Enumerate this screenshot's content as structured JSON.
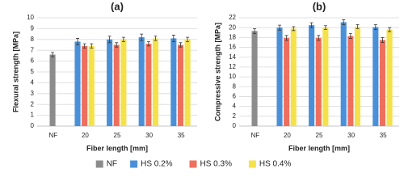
{
  "chart_data": [
    {
      "type": "bar",
      "title": "(a)",
      "ylabel": "Flexural strength [MPa]",
      "xlabel": "Fiber length [mm]",
      "categories": [
        "NF",
        "20",
        "25",
        "30",
        "35"
      ],
      "ylim": [
        0,
        10
      ],
      "yticks": [
        0,
        1,
        2,
        3,
        4,
        5,
        6,
        7,
        8,
        9,
        10
      ],
      "grid": true,
      "series": [
        {
          "values": [
            6.6,
            null,
            null,
            null,
            null
          ],
          "errors": [
            0.2,
            null,
            null,
            null,
            null
          ]
        },
        {
          "values": [
            null,
            7.8,
            8.0,
            8.2,
            8.1
          ],
          "errors": [
            null,
            0.3,
            0.3,
            0.3,
            0.3
          ]
        },
        {
          "values": [
            null,
            7.4,
            7.5,
            7.6,
            7.5
          ],
          "errors": [
            null,
            0.2,
            0.2,
            0.2,
            0.2
          ]
        },
        {
          "values": [
            null,
            7.4,
            8.0,
            8.1,
            8.0
          ],
          "errors": [
            null,
            0.2,
            0.2,
            0.2,
            0.2
          ]
        }
      ]
    },
    {
      "type": "bar",
      "title": "(b)",
      "ylabel": "Compressive strength [MPa]",
      "xlabel": "Fiber length [mm]",
      "categories": [
        "NF",
        "20",
        "25",
        "30",
        "35"
      ],
      "ylim": [
        0,
        22
      ],
      "yticks": [
        0,
        2,
        4,
        6,
        8,
        10,
        12,
        14,
        16,
        18,
        20,
        22
      ],
      "grid": true,
      "series": [
        {
          "values": [
            19.3,
            null,
            null,
            null,
            null
          ],
          "errors": [
            0.5,
            null,
            null,
            null,
            null
          ]
        },
        {
          "values": [
            null,
            20.0,
            20.5,
            21.1,
            20.1
          ],
          "errors": [
            null,
            0.5,
            0.5,
            0.5,
            0.5
          ]
        },
        {
          "values": [
            null,
            17.9,
            17.9,
            18.3,
            17.5
          ],
          "errors": [
            null,
            0.5,
            0.5,
            0.5,
            0.5
          ]
        },
        {
          "values": [
            null,
            19.8,
            20.0,
            20.2,
            19.6
          ],
          "errors": [
            null,
            0.4,
            0.4,
            0.4,
            0.4
          ]
        }
      ]
    }
  ],
  "legend": {
    "position": "bottom",
    "entries": [
      {
        "name": "NF",
        "color": "#8c8c8c"
      },
      {
        "name": "HS 0.2%",
        "color": "#4a90d9"
      },
      {
        "name": "HS 0.3%",
        "color": "#ef6f5e"
      },
      {
        "name": "HS 0.4%",
        "color": "#f5e24a"
      }
    ]
  }
}
